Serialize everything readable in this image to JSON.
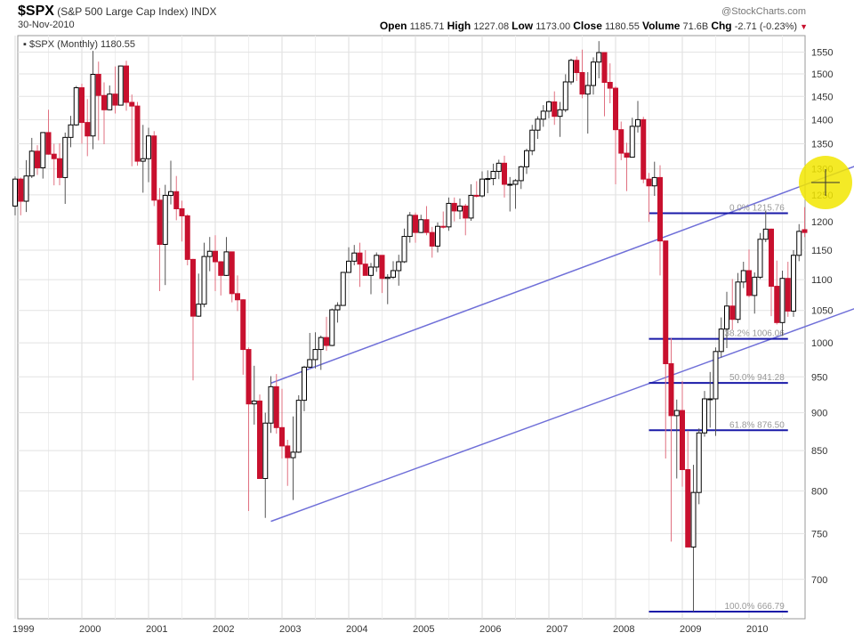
{
  "header": {
    "symbol": "$SPX",
    "name": "(S&P 500 Large Cap Index)",
    "exchange": "INDX",
    "date": "30-Nov-2010",
    "open_label": "Open",
    "open": "1185.71",
    "high_label": "High",
    "high": "1227.08",
    "low_label": "Low",
    "low": "1173.00",
    "close_label": "Close",
    "close": "1180.55",
    "volume_label": "Volume",
    "volume": "71.6B",
    "chg_label": "Chg",
    "chg": "-2.71 (-0.23%)",
    "brand": "@StockCharts.com"
  },
  "legend": "$SPX (Monthly) 1180.55",
  "chart_data": {
    "type": "candlestick",
    "interval": "monthly",
    "start": "1999-01",
    "yscale": "log",
    "ylim": [
      660,
      1600
    ],
    "yticks": [
      700,
      750,
      800,
      850,
      900,
      950,
      1000,
      1050,
      1100,
      1150,
      1200,
      1250,
      1300,
      1350,
      1400,
      1450,
      1500,
      1550
    ],
    "xticks": [
      "1999",
      "2000",
      "2001",
      "2002",
      "2003",
      "2004",
      "2005",
      "2006",
      "2007",
      "2008",
      "2009",
      "2010"
    ],
    "grid": true,
    "colors": {
      "up": "#000000",
      "down": "#c8102e",
      "trendline": "#6f6fd8",
      "fib": "#1a1aa8",
      "highlight": "#f2e600"
    },
    "ohlc": [
      [
        1229,
        1285,
        1212,
        1280
      ],
      [
        1280,
        1283,
        1212,
        1238
      ],
      [
        1238,
        1317,
        1218,
        1286
      ],
      [
        1286,
        1362,
        1282,
        1335
      ],
      [
        1335,
        1347,
        1288,
        1302
      ],
      [
        1302,
        1373,
        1281,
        1373
      ],
      [
        1373,
        1421,
        1328,
        1329
      ],
      [
        1329,
        1350,
        1268,
        1320
      ],
      [
        1320,
        1351,
        1268,
        1283
      ],
      [
        1283,
        1373,
        1233,
        1363
      ],
      [
        1363,
        1408,
        1343,
        1389
      ],
      [
        1389,
        1473,
        1387,
        1469
      ],
      [
        1469,
        1478,
        1350,
        1394
      ],
      [
        1394,
        1444,
        1325,
        1366
      ],
      [
        1366,
        1553,
        1339,
        1499
      ],
      [
        1499,
        1528,
        1357,
        1452
      ],
      [
        1452,
        1481,
        1349,
        1421
      ],
      [
        1421,
        1474,
        1420,
        1455
      ],
      [
        1455,
        1517,
        1413,
        1431
      ],
      [
        1431,
        1519,
        1431,
        1518
      ],
      [
        1518,
        1530,
        1419,
        1437
      ],
      [
        1437,
        1454,
        1305,
        1429
      ],
      [
        1429,
        1438,
        1306,
        1315
      ],
      [
        1315,
        1389,
        1254,
        1320
      ],
      [
        1320,
        1383,
        1274,
        1366
      ],
      [
        1366,
        1376,
        1229,
        1240
      ],
      [
        1240,
        1263,
        1081,
        1160
      ],
      [
        1160,
        1269,
        1091,
        1249
      ],
      [
        1249,
        1316,
        1232,
        1256
      ],
      [
        1256,
        1286,
        1203,
        1224
      ],
      [
        1224,
        1239,
        1165,
        1211
      ],
      [
        1211,
        1214,
        1124,
        1134
      ],
      [
        1134,
        1135,
        945,
        1041
      ],
      [
        1041,
        1110,
        1040,
        1060
      ],
      [
        1060,
        1163,
        1055,
        1139
      ],
      [
        1139,
        1173,
        1114,
        1148
      ],
      [
        1148,
        1176,
        1081,
        1130
      ],
      [
        1130,
        1131,
        1074,
        1107
      ],
      [
        1107,
        1173,
        1106,
        1147
      ],
      [
        1147,
        1147,
        1063,
        1077
      ],
      [
        1077,
        1107,
        1049,
        1067
      ],
      [
        1067,
        1068,
        953,
        990
      ],
      [
        990,
        993,
        776,
        912
      ],
      [
        912,
        966,
        884,
        916
      ],
      [
        916,
        925,
        815,
        815
      ],
      [
        815,
        900,
        768,
        886
      ],
      [
        886,
        951,
        873,
        936
      ],
      [
        936,
        954,
        872,
        880
      ],
      [
        880,
        933,
        840,
        856
      ],
      [
        856,
        864,
        806,
        841
      ],
      [
        841,
        895,
        789,
        848
      ],
      [
        848,
        924,
        847,
        917
      ],
      [
        917,
        966,
        902,
        964
      ],
      [
        964,
        1015,
        963,
        975
      ],
      [
        975,
        1016,
        962,
        990
      ],
      [
        990,
        1011,
        960,
        1008
      ],
      [
        1008,
        1040,
        988,
        996
      ],
      [
        996,
        1053,
        995,
        1051
      ],
      [
        1051,
        1063,
        1031,
        1058
      ],
      [
        1058,
        1112,
        1059,
        1112
      ],
      [
        1112,
        1155,
        1112,
        1131
      ],
      [
        1131,
        1159,
        1124,
        1145
      ],
      [
        1145,
        1163,
        1088,
        1126
      ],
      [
        1126,
        1150,
        1107,
        1107
      ],
      [
        1107,
        1128,
        1076,
        1121
      ],
      [
        1121,
        1146,
        1113,
        1141
      ],
      [
        1141,
        1141,
        1078,
        1102
      ],
      [
        1102,
        1109,
        1060,
        1104
      ],
      [
        1104,
        1131,
        1101,
        1115
      ],
      [
        1115,
        1142,
        1090,
        1130
      ],
      [
        1130,
        1188,
        1128,
        1174
      ],
      [
        1174,
        1218,
        1163,
        1212
      ],
      [
        1212,
        1217,
        1163,
        1181
      ],
      [
        1181,
        1213,
        1180,
        1204
      ],
      [
        1204,
        1229,
        1176,
        1181
      ],
      [
        1181,
        1191,
        1137,
        1157
      ],
      [
        1157,
        1199,
        1146,
        1192
      ],
      [
        1192,
        1219,
        1188,
        1191
      ],
      [
        1191,
        1245,
        1184,
        1234
      ],
      [
        1234,
        1245,
        1201,
        1220
      ],
      [
        1220,
        1243,
        1205,
        1229
      ],
      [
        1229,
        1233,
        1176,
        1207
      ],
      [
        1207,
        1270,
        1202,
        1249
      ],
      [
        1249,
        1276,
        1245,
        1248
      ],
      [
        1248,
        1295,
        1245,
        1280
      ],
      [
        1280,
        1297,
        1253,
        1281
      ],
      [
        1281,
        1310,
        1268,
        1295
      ],
      [
        1295,
        1318,
        1280,
        1311
      ],
      [
        1311,
        1326,
        1245,
        1270
      ],
      [
        1270,
        1284,
        1219,
        1270
      ],
      [
        1270,
        1280,
        1224,
        1277
      ],
      [
        1277,
        1306,
        1261,
        1304
      ],
      [
        1304,
        1340,
        1290,
        1336
      ],
      [
        1336,
        1389,
        1327,
        1378
      ],
      [
        1378,
        1407,
        1360,
        1401
      ],
      [
        1401,
        1431,
        1385,
        1418
      ],
      [
        1418,
        1441,
        1403,
        1438
      ],
      [
        1438,
        1461,
        1389,
        1407
      ],
      [
        1407,
        1438,
        1364,
        1421
      ],
      [
        1421,
        1499,
        1416,
        1482
      ],
      [
        1482,
        1535,
        1476,
        1531
      ],
      [
        1531,
        1540,
        1484,
        1503
      ],
      [
        1503,
        1556,
        1446,
        1455
      ],
      [
        1455,
        1504,
        1371,
        1474
      ],
      [
        1474,
        1538,
        1454,
        1527
      ],
      [
        1527,
        1576,
        1490,
        1549
      ],
      [
        1549,
        1550,
        1407,
        1481
      ],
      [
        1481,
        1524,
        1435,
        1468
      ],
      [
        1468,
        1472,
        1270,
        1379
      ],
      [
        1379,
        1396,
        1317,
        1331
      ],
      [
        1331,
        1352,
        1257,
        1323
      ],
      [
        1323,
        1404,
        1324,
        1386
      ],
      [
        1386,
        1440,
        1373,
        1400
      ],
      [
        1400,
        1406,
        1272,
        1280
      ],
      [
        1280,
        1292,
        1200,
        1267
      ],
      [
        1267,
        1314,
        1248,
        1283
      ],
      [
        1283,
        1307,
        1107,
        1166
      ],
      [
        1166,
        1165,
        840,
        969
      ],
      [
        969,
        1007,
        741,
        896
      ],
      [
        896,
        918,
        815,
        903
      ],
      [
        903,
        944,
        805,
        826
      ],
      [
        826,
        876,
        735,
        735
      ],
      [
        735,
        832,
        667,
        798
      ],
      [
        798,
        879,
        784,
        873
      ],
      [
        873,
        930,
        868,
        919
      ],
      [
        919,
        957,
        880,
        919
      ],
      [
        919,
        993,
        869,
        987
      ],
      [
        987,
        1039,
        978,
        1021
      ],
      [
        1021,
        1080,
        992,
        1057
      ],
      [
        1057,
        1101,
        1020,
        1036
      ],
      [
        1036,
        1111,
        1030,
        1096
      ],
      [
        1096,
        1130,
        1086,
        1115
      ],
      [
        1115,
        1151,
        1071,
        1074
      ],
      [
        1074,
        1112,
        1045,
        1104
      ],
      [
        1104,
        1180,
        1101,
        1169
      ],
      [
        1169,
        1220,
        1164,
        1187
      ],
      [
        1187,
        1188,
        1041,
        1089
      ],
      [
        1089,
        1132,
        1028,
        1031
      ],
      [
        1031,
        1115,
        1011,
        1102
      ],
      [
        1102,
        1130,
        1040,
        1049
      ],
      [
        1049,
        1150,
        1040,
        1141
      ],
      [
        1141,
        1196,
        1131,
        1183
      ],
      [
        1186,
        1227,
        1173,
        1181
      ]
    ],
    "trendlines": [
      {
        "from": [
          "2002-11",
          941
        ],
        "to": [
          "2011-08",
          1305
        ]
      },
      {
        "from": [
          "2002-11",
          764
        ],
        "to": [
          "2011-08",
          1053
        ]
      }
    ],
    "fibonacci": {
      "from": "2008-07",
      "to": "2010-08",
      "levels": [
        {
          "label": "0.0%",
          "value": 1215.76
        },
        {
          "label": "38.2%",
          "value": 1006.06
        },
        {
          "label": "50.0%",
          "value": 941.28
        },
        {
          "label": "61.8%",
          "value": 876.5
        },
        {
          "label": "100.0%",
          "value": 666.79
        }
      ]
    }
  }
}
